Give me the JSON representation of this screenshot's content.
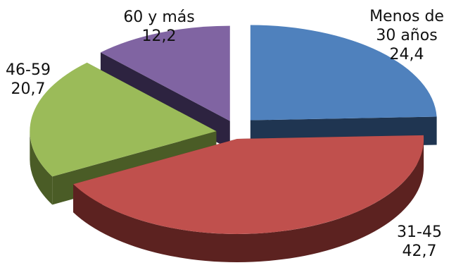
{
  "chart_data": {
    "type": "pie",
    "variant": "3d-exploded",
    "title": "",
    "categories": [
      "Menos de 30 años",
      "31-45",
      "46-59",
      "60 y más"
    ],
    "values": [
      24.4,
      42.7,
      20.7,
      12.2
    ],
    "labels": [
      {
        "category_lines": [
          "Menos de",
          "30 años"
        ],
        "value_text": "24,4"
      },
      {
        "category_lines": [
          "31-45"
        ],
        "value_text": "42,7"
      },
      {
        "category_lines": [
          "46-59"
        ],
        "value_text": "20,7"
      },
      {
        "category_lines": [
          "60 y más"
        ],
        "value_text": "12,2"
      }
    ],
    "colors": [
      {
        "top": "#4f81bd",
        "side": "#1f3551"
      },
      {
        "top": "#c0504d",
        "side": "#5c2220"
      },
      {
        "top": "#9bbb59",
        "side": "#4a5c26"
      },
      {
        "top": "#8064a2",
        "side": "#2d2340"
      }
    ],
    "legend": "none",
    "grid": false
  }
}
